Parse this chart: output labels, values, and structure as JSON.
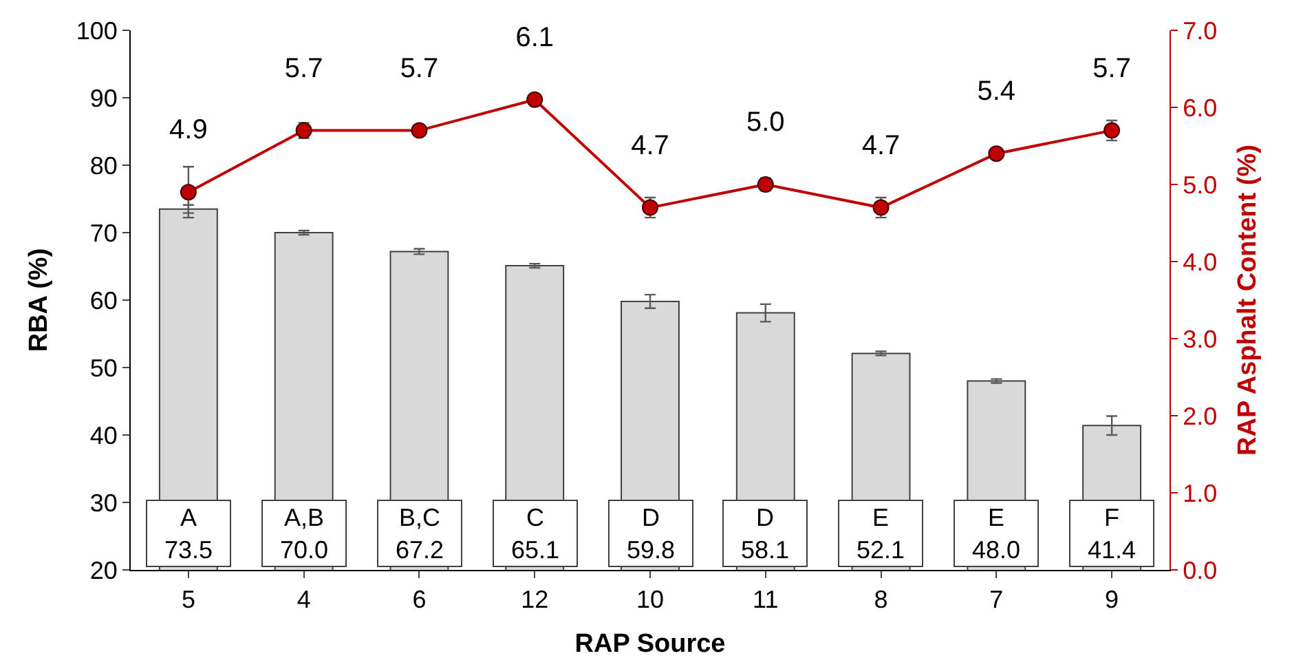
{
  "chart_data": {
    "type": "bar",
    "xlabel": "RAP Source",
    "ylabel": "RBA (%)",
    "y2label": "RAP Asphalt Content (%)",
    "categories": [
      "5",
      "4",
      "6",
      "12",
      "10",
      "11",
      "8",
      "7",
      "9"
    ],
    "series": [
      {
        "color": "#d9d9d9",
        "values": [
          73.5,
          70.0,
          67.2,
          65.1,
          59.8,
          58.1,
          52.1,
          48.0,
          41.4
        ],
        "errors": [
          0.6,
          0.3,
          0.4,
          0.3,
          1.0,
          1.3,
          0.3,
          0.3,
          1.4
        ],
        "value_labels": [
          "A\n73.5",
          "A,B\n70.0",
          "B,C\n67.2",
          "C\n65.1",
          "D\n59.8",
          "D\n58.1",
          "E\n52.1",
          "E\n48.0",
          "F\n41.4"
        ]
      },
      {
        "type": "line",
        "axis": "y2",
        "color": "#c00000",
        "marker": "circle",
        "values": [
          4.9,
          5.7,
          5.7,
          6.1,
          4.7,
          5.0,
          4.7,
          5.4,
          5.7
        ],
        "value_labels": [
          "4.9",
          "5.7",
          "5.7",
          "6.1",
          "4.7",
          "5.0",
          "4.7",
          "5.4",
          "5.7"
        ],
        "errors": [
          0.33,
          0.1,
          null,
          null,
          0.13,
          0.08,
          0.13,
          null,
          0.13
        ]
      }
    ],
    "ylim": [
      20,
      100
    ],
    "yticks": [
      20,
      30,
      40,
      50,
      60,
      70,
      80,
      90,
      100
    ],
    "y2lim": [
      0,
      7
    ],
    "y2ticks": [
      {
        "value": 0,
        "label": "0.0"
      },
      {
        "value": 1,
        "label": "1.0"
      },
      {
        "value": 2,
        "label": "2.0"
      },
      {
        "value": 3,
        "label": "3.0"
      },
      {
        "value": 4,
        "label": "4.0"
      },
      {
        "value": 5,
        "label": "5.0"
      },
      {
        "value": 6,
        "label": "6.0"
      },
      {
        "value": 7,
        "label": "7.0"
      }
    ]
  }
}
